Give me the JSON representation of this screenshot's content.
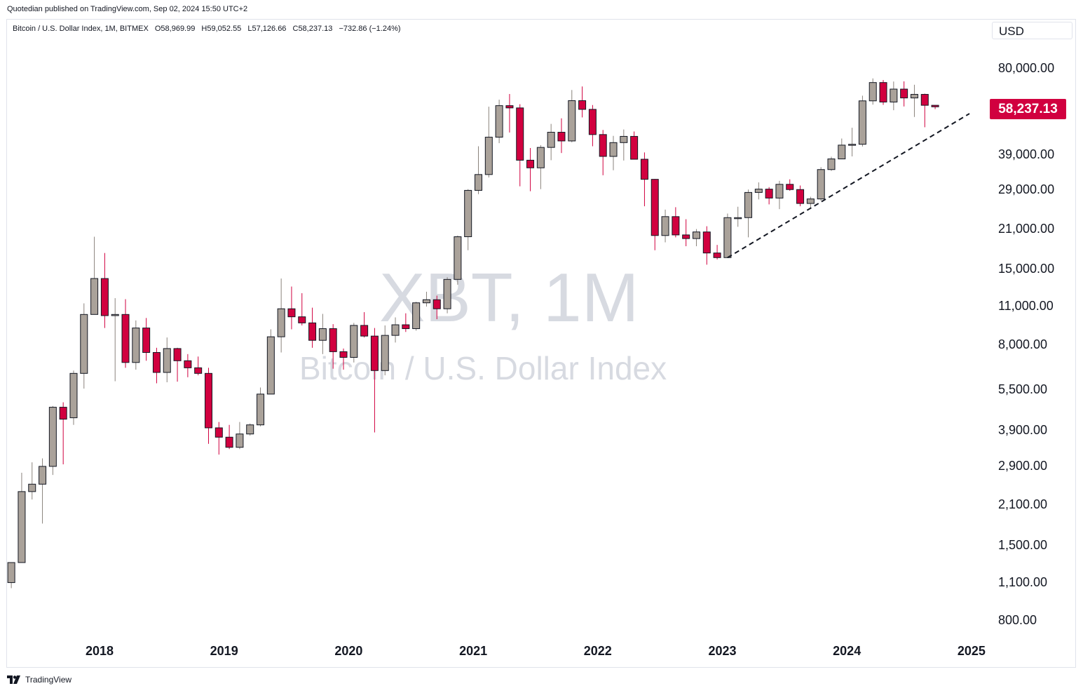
{
  "publisher": "Quotedian published on TradingView.com, Sep 02, 2024 15:50 UTC+2",
  "legend": {
    "symbol": "Bitcoin / U.S. Dollar Index, 1M, BITMEX",
    "open": "O58,969.99",
    "high": "H59,052.55",
    "low": "L57,126.66",
    "close": "C58,237.13",
    "change": "−732.86 (−1.24%)"
  },
  "currency": "USD",
  "last_price": "58,237.13",
  "watermark": {
    "ticker": "XBT, 1M",
    "name": "Bitcoin / U.S. Dollar Index"
  },
  "footer": {
    "brand": "TradingView"
  },
  "colors": {
    "up": "#aaa29a",
    "down": "#d1003f",
    "trendline": "#131722"
  },
  "chart_data": {
    "type": "candlestick",
    "scale": "log",
    "ylim": [
      700,
      115000
    ],
    "y_ticks": [
      "80,000.00",
      "39,000.00",
      "29,000.00",
      "21,000.00",
      "15,000.00",
      "11,000.00",
      "8,000.00",
      "5,500.00",
      "3,900.00",
      "2,900.00",
      "2,100.00",
      "1,500.00",
      "1,100.00",
      "800.00"
    ],
    "x_ticks": [
      "2018",
      "2019",
      "2020",
      "2021",
      "2022",
      "2023",
      "2024",
      "2025"
    ],
    "candles": [
      [
        "2017-04",
        1100,
        1300,
        1050,
        1300
      ],
      [
        "2017-05",
        1300,
        2750,
        1300,
        2350
      ],
      [
        "2017-06",
        2350,
        3000,
        2200,
        2500
      ],
      [
        "2017-07",
        2500,
        3100,
        1800,
        2900
      ],
      [
        "2017-08",
        2900,
        4800,
        2700,
        4750
      ],
      [
        "2017-09",
        4750,
        4950,
        2950,
        4300
      ],
      [
        "2017-10",
        4350,
        6450,
        4100,
        6300
      ],
      [
        "2017-11",
        6300,
        11300,
        5550,
        10300
      ],
      [
        "2017-12",
        10300,
        19700,
        10300,
        13900
      ],
      [
        "2018-01",
        13900,
        17200,
        9200,
        10200
      ],
      [
        "2018-02",
        10200,
        11800,
        5900,
        10300
      ],
      [
        "2018-03",
        10300,
        11700,
        6600,
        6900
      ],
      [
        "2018-04",
        6900,
        9800,
        6500,
        9200
      ],
      [
        "2018-05",
        9200,
        10000,
        7000,
        7500
      ],
      [
        "2018-06",
        7500,
        7800,
        5800,
        6350
      ],
      [
        "2018-07",
        6350,
        8500,
        5850,
        7750
      ],
      [
        "2018-08",
        7750,
        7800,
        5880,
        7000
      ],
      [
        "2018-09",
        7000,
        7400,
        6100,
        6600
      ],
      [
        "2018-10",
        6600,
        7250,
        6200,
        6300
      ],
      [
        "2018-11",
        6300,
        6600,
        3500,
        4000
      ],
      [
        "2018-12",
        4000,
        4200,
        3200,
        3700
      ],
      [
        "2019-01",
        3700,
        4100,
        3350,
        3400
      ],
      [
        "2019-02",
        3400,
        4200,
        3350,
        3800
      ],
      [
        "2019-03",
        3800,
        4150,
        3750,
        4100
      ],
      [
        "2019-04",
        4100,
        5600,
        4050,
        5300
      ],
      [
        "2019-05",
        5300,
        9100,
        5300,
        8550
      ],
      [
        "2019-06",
        8550,
        13900,
        7500,
        10800
      ],
      [
        "2019-07",
        10800,
        13000,
        9100,
        10100
      ],
      [
        "2019-08",
        10100,
        12300,
        9400,
        9600
      ],
      [
        "2019-09",
        9600,
        10900,
        7800,
        8300
      ],
      [
        "2019-10",
        8300,
        10350,
        7400,
        9150
      ],
      [
        "2019-11",
        9150,
        9500,
        6550,
        7550
      ],
      [
        "2019-12",
        7550,
        7750,
        6500,
        7200
      ],
      [
        "2020-01",
        7200,
        9600,
        6900,
        9400
      ],
      [
        "2020-02",
        9400,
        10500,
        8500,
        8600
      ],
      [
        "2020-03",
        8600,
        9200,
        3850,
        6450
      ],
      [
        "2020-04",
        6450,
        9400,
        6200,
        8650
      ],
      [
        "2020-05",
        8650,
        10050,
        8150,
        9450
      ],
      [
        "2020-06",
        9450,
        10400,
        8900,
        9150
      ],
      [
        "2020-07",
        9150,
        11450,
        9000,
        11350
      ],
      [
        "2020-08",
        11350,
        12450,
        11000,
        11650
      ],
      [
        "2020-09",
        11650,
        12050,
        9900,
        10800
      ],
      [
        "2020-10",
        10800,
        14050,
        10400,
        13800
      ],
      [
        "2020-11",
        13800,
        19900,
        13200,
        19700
      ],
      [
        "2020-12",
        19700,
        29300,
        17600,
        29000
      ],
      [
        "2021-01",
        29000,
        41900,
        28100,
        33100
      ],
      [
        "2021-02",
        33100,
        58300,
        32300,
        45200
      ],
      [
        "2021-03",
        45200,
        61800,
        43000,
        58800
      ],
      [
        "2021-04",
        58800,
        64800,
        47000,
        57700
      ],
      [
        "2021-05",
        57700,
        59500,
        30000,
        37300
      ],
      [
        "2021-06",
        37300,
        41300,
        28800,
        35000
      ],
      [
        "2021-07",
        35000,
        42300,
        29300,
        41500
      ],
      [
        "2021-08",
        41500,
        50500,
        37300,
        47100
      ],
      [
        "2021-09",
        47100,
        52900,
        39600,
        43800
      ],
      [
        "2021-10",
        43800,
        67000,
        43300,
        61300
      ],
      [
        "2021-11",
        61300,
        69000,
        53300,
        57000
      ],
      [
        "2021-12",
        57000,
        59100,
        41900,
        46200
      ],
      [
        "2022-01",
        46200,
        48000,
        32900,
        38500
      ],
      [
        "2022-02",
        38500,
        45700,
        34300,
        43200
      ],
      [
        "2022-03",
        43200,
        48200,
        37200,
        45500
      ],
      [
        "2022-04",
        45500,
        47400,
        37700,
        37600
      ],
      [
        "2022-05",
        37600,
        39800,
        25400,
        31800
      ],
      [
        "2022-06",
        31800,
        31900,
        17600,
        19900
      ],
      [
        "2022-07",
        19900,
        24700,
        18800,
        23300
      ],
      [
        "2022-08",
        23300,
        25200,
        19600,
        20000
      ],
      [
        "2022-09",
        20000,
        22800,
        18200,
        19400
      ],
      [
        "2022-10",
        19400,
        21000,
        18200,
        20500
      ],
      [
        "2022-11",
        20500,
        21500,
        15600,
        17200
      ],
      [
        "2022-12",
        17200,
        18400,
        16300,
        16550
      ],
      [
        "2023-01",
        16550,
        23900,
        16500,
        23100
      ],
      [
        "2023-02",
        23100,
        25300,
        21400,
        23100
      ],
      [
        "2023-03",
        23100,
        29200,
        19600,
        28500
      ],
      [
        "2023-04",
        28500,
        31000,
        26900,
        29300
      ],
      [
        "2023-05",
        29300,
        29800,
        25800,
        27200
      ],
      [
        "2023-06",
        27200,
        31400,
        24800,
        30500
      ],
      [
        "2023-07",
        30500,
        31800,
        28900,
        29200
      ],
      [
        "2023-08",
        29200,
        30200,
        25400,
        26000
      ],
      [
        "2023-09",
        26000,
        27500,
        24900,
        27000
      ],
      [
        "2023-10",
        27000,
        35200,
        26600,
        34500
      ],
      [
        "2023-11",
        34500,
        38400,
        34100,
        37700
      ],
      [
        "2023-12",
        37700,
        44700,
        37600,
        42300
      ],
      [
        "2024-01",
        42300,
        48900,
        38500,
        42600
      ],
      [
        "2024-02",
        42600,
        63900,
        41800,
        61200
      ],
      [
        "2024-03",
        61200,
        73800,
        59300,
        71300
      ],
      [
        "2024-04",
        71300,
        72800,
        59200,
        60600
      ],
      [
        "2024-05",
        60600,
        71900,
        56600,
        67500
      ],
      [
        "2024-06",
        67500,
        72000,
        58400,
        62700
      ],
      [
        "2024-07",
        62700,
        70000,
        53500,
        64600
      ],
      [
        "2024-08",
        64600,
        65000,
        49100,
        58970
      ],
      [
        "2024-09",
        58970,
        59050,
        57130,
        58237
      ]
    ],
    "trendline": {
      "start": [
        "2023-01",
        16550
      ],
      "end": [
        "2024-11",
        52000
      ],
      "style": "dashed"
    }
  }
}
